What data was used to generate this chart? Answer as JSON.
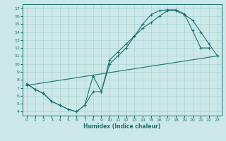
{
  "xlabel": "Humidex (Indice chaleur)",
  "bg_color": "#cce8e8",
  "line_color": "#1a7070",
  "grid_color": "#aad4d4",
  "xlim": [
    -0.5,
    23.5
  ],
  "ylim": [
    3.5,
    17.5
  ],
  "xticks": [
    0,
    1,
    2,
    3,
    4,
    5,
    6,
    7,
    8,
    9,
    10,
    11,
    12,
    13,
    14,
    15,
    16,
    17,
    18,
    19,
    20,
    21,
    22,
    23
  ],
  "yticks": [
    4,
    5,
    6,
    7,
    8,
    9,
    10,
    11,
    12,
    13,
    14,
    15,
    16,
    17
  ],
  "line1_x": [
    0,
    23
  ],
  "line1_y": [
    7.3,
    11.0
  ],
  "line2_x": [
    0,
    1,
    2,
    3,
    4,
    5,
    6,
    7,
    8,
    9,
    10,
    11,
    12,
    13,
    14,
    15,
    16,
    17,
    18,
    19,
    20,
    21,
    22
  ],
  "line2_y": [
    7.5,
    6.8,
    6.3,
    5.3,
    4.8,
    4.3,
    4.0,
    4.8,
    8.5,
    6.5,
    10.5,
    11.5,
    12.5,
    13.5,
    15.0,
    16.2,
    16.7,
    16.8,
    16.8,
    16.3,
    14.2,
    12.0,
    12.0
  ],
  "line3_x": [
    0,
    1,
    2,
    3,
    4,
    5,
    6,
    7,
    8,
    9,
    10,
    11,
    12,
    13,
    14,
    15,
    16,
    17,
    18,
    19,
    20,
    21,
    22,
    23
  ],
  "line3_y": [
    7.5,
    6.8,
    6.3,
    5.3,
    4.8,
    4.3,
    4.0,
    4.8,
    6.5,
    6.5,
    10.0,
    11.0,
    12.0,
    13.5,
    14.5,
    15.2,
    16.0,
    16.7,
    16.7,
    16.2,
    15.5,
    14.0,
    12.5,
    11.0
  ]
}
